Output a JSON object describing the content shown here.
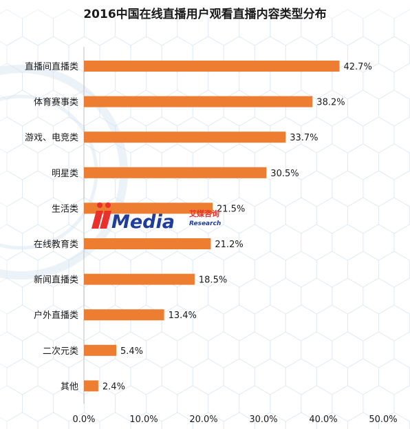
{
  "colors": {
    "bar": "#ed7d31",
    "axis": "#bfbfbf",
    "background_pattern": "#d7e6f2",
    "watermark_red": "#e8312d",
    "watermark_blue": "#1f3d99"
  },
  "watermark": {
    "brand": "Media",
    "cn_name": "艾媒咨询",
    "sub": "Research"
  },
  "chart_data": {
    "type": "bar",
    "orientation": "horizontal",
    "title": "2016中国在线直播用户观看直播内容类型分布",
    "categories": [
      "直播间直播类",
      "体育赛事类",
      "游戏、电竞类",
      "明星类",
      "生活类",
      "在线教育类",
      "新闻直播类",
      "户外直播类",
      "二次元类",
      "其他"
    ],
    "values": [
      42.7,
      38.2,
      33.7,
      30.5,
      21.5,
      21.2,
      18.5,
      13.4,
      5.4,
      2.4
    ],
    "value_labels": [
      "42.7%",
      "38.2%",
      "33.7%",
      "30.5%",
      "21.5%",
      "21.2%",
      "18.5%",
      "13.4%",
      "5.4%",
      "2.4%"
    ],
    "xlim": [
      0,
      50
    ],
    "x_ticks": [
      0,
      10,
      20,
      30,
      40,
      50
    ],
    "x_tick_labels": [
      "0.0%",
      "10.0%",
      "20.0%",
      "30.0%",
      "40.0%",
      "50.0%"
    ],
    "xlabel": "",
    "ylabel": "",
    "grid": false,
    "legend": "none"
  }
}
